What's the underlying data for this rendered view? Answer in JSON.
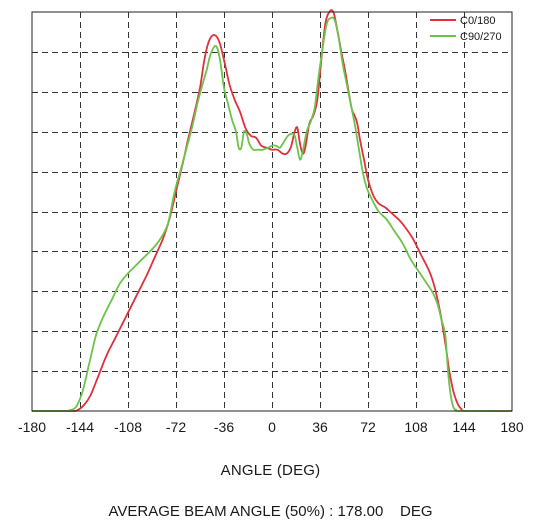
{
  "chart_data": {
    "type": "line",
    "xlabel": "ANGLE (DEG)",
    "ylabel": "",
    "xlim": [
      -180,
      180
    ],
    "ylim": [
      0,
      1
    ],
    "x_ticks": [
      -180,
      -144,
      -108,
      -72,
      -36,
      0,
      36,
      72,
      108,
      144,
      180
    ],
    "y_gridlines": 10,
    "grid": true,
    "legend": "top-right",
    "footer": "AVERAGE BEAM ANGLE (50%) : 178.00    DEG",
    "series": [
      {
        "name": "C0/180",
        "color": "#e0303c",
        "points": [
          [
            -180,
            0
          ],
          [
            -151,
            0
          ],
          [
            -146,
            0.002
          ],
          [
            -141,
            0.015
          ],
          [
            -136,
            0.04
          ],
          [
            -130,
            0.09
          ],
          [
            -124,
            0.14
          ],
          [
            -118,
            0.18
          ],
          [
            -112,
            0.22
          ],
          [
            -106,
            0.26
          ],
          [
            -100,
            0.3
          ],
          [
            -94,
            0.34
          ],
          [
            -88,
            0.385
          ],
          [
            -82,
            0.43
          ],
          [
            -77,
            0.48
          ],
          [
            -72,
            0.55
          ],
          [
            -67,
            0.62
          ],
          [
            -63,
            0.68
          ],
          [
            -58,
            0.75
          ],
          [
            -54,
            0.81
          ],
          [
            -51,
            0.875
          ],
          [
            -48,
            0.92
          ],
          [
            -45,
            0.94
          ],
          [
            -42,
            0.94
          ],
          [
            -39,
            0.92
          ],
          [
            -36,
            0.88
          ],
          [
            -32,
            0.82
          ],
          [
            -28,
            0.78
          ],
          [
            -24,
            0.75
          ],
          [
            -20,
            0.71
          ],
          [
            -16,
            0.69
          ],
          [
            -12,
            0.685
          ],
          [
            -8,
            0.665
          ],
          [
            -4,
            0.66
          ],
          [
            0,
            0.655
          ],
          [
            4,
            0.655
          ],
          [
            8,
            0.645
          ],
          [
            11,
            0.645
          ],
          [
            14,
            0.66
          ],
          [
            17,
            0.7
          ],
          [
            19,
            0.71
          ],
          [
            21,
            0.67
          ],
          [
            23,
            0.645
          ],
          [
            25,
            0.66
          ],
          [
            28,
            0.72
          ],
          [
            31,
            0.74
          ],
          [
            34,
            0.78
          ],
          [
            37,
            0.88
          ],
          [
            40,
            0.97
          ],
          [
            43,
            1.0
          ],
          [
            46,
            1.0
          ],
          [
            49,
            0.955
          ],
          [
            52,
            0.9
          ],
          [
            55,
            0.85
          ],
          [
            58,
            0.79
          ],
          [
            60,
            0.755
          ],
          [
            62,
            0.74
          ],
          [
            64,
            0.72
          ],
          [
            66,
            0.68
          ],
          [
            69,
            0.63
          ],
          [
            72,
            0.58
          ],
          [
            76,
            0.54
          ],
          [
            80,
            0.52
          ],
          [
            85,
            0.51
          ],
          [
            90,
            0.495
          ],
          [
            95,
            0.48
          ],
          [
            100,
            0.46
          ],
          [
            106,
            0.43
          ],
          [
            112,
            0.39
          ],
          [
            118,
            0.35
          ],
          [
            122,
            0.31
          ],
          [
            126,
            0.25
          ],
          [
            130,
            0.17
          ],
          [
            133,
            0.1
          ],
          [
            136,
            0.05
          ],
          [
            139,
            0.02
          ],
          [
            142,
            0.005
          ],
          [
            146,
            0
          ],
          [
            180,
            0
          ]
        ]
      },
      {
        "name": "C90/270",
        "color": "#6cc24a",
        "points": [
          [
            -180,
            0
          ],
          [
            -156,
            0
          ],
          [
            -152,
            0.002
          ],
          [
            -147,
            0.01
          ],
          [
            -142,
            0.05
          ],
          [
            -137,
            0.12
          ],
          [
            -132,
            0.19
          ],
          [
            -126,
            0.24
          ],
          [
            -120,
            0.28
          ],
          [
            -114,
            0.32
          ],
          [
            -108,
            0.345
          ],
          [
            -102,
            0.365
          ],
          [
            -96,
            0.385
          ],
          [
            -90,
            0.405
          ],
          [
            -84,
            0.43
          ],
          [
            -78,
            0.47
          ],
          [
            -73,
            0.55
          ],
          [
            -68,
            0.61
          ],
          [
            -64,
            0.66
          ],
          [
            -60,
            0.71
          ],
          [
            -56,
            0.77
          ],
          [
            -52,
            0.82
          ],
          [
            -49,
            0.855
          ],
          [
            -46,
            0.895
          ],
          [
            -42,
            0.915
          ],
          [
            -39,
            0.88
          ],
          [
            -36,
            0.81
          ],
          [
            -33,
            0.77
          ],
          [
            -30,
            0.73
          ],
          [
            -27,
            0.7
          ],
          [
            -25,
            0.66
          ],
          [
            -23,
            0.66
          ],
          [
            -21,
            0.7
          ],
          [
            -19,
            0.695
          ],
          [
            -17,
            0.67
          ],
          [
            -14,
            0.655
          ],
          [
            -11,
            0.655
          ],
          [
            -7,
            0.655
          ],
          [
            -3,
            0.66
          ],
          [
            0,
            0.665
          ],
          [
            3,
            0.665
          ],
          [
            6,
            0.66
          ],
          [
            9,
            0.675
          ],
          [
            12,
            0.69
          ],
          [
            15,
            0.695
          ],
          [
            17,
            0.69
          ],
          [
            19,
            0.66
          ],
          [
            21,
            0.63
          ],
          [
            23,
            0.65
          ],
          [
            26,
            0.7
          ],
          [
            29,
            0.725
          ],
          [
            32,
            0.76
          ],
          [
            35,
            0.84
          ],
          [
            38,
            0.91
          ],
          [
            41,
            0.97
          ],
          [
            44,
            0.985
          ],
          [
            47,
            0.98
          ],
          [
            50,
            0.935
          ],
          [
            53,
            0.87
          ],
          [
            56,
            0.82
          ],
          [
            59,
            0.77
          ],
          [
            62,
            0.72
          ],
          [
            65,
            0.66
          ],
          [
            68,
            0.6
          ],
          [
            71,
            0.56
          ],
          [
            75,
            0.53
          ],
          [
            80,
            0.5
          ],
          [
            86,
            0.48
          ],
          [
            92,
            0.45
          ],
          [
            98,
            0.42
          ],
          [
            104,
            0.38
          ],
          [
            110,
            0.35
          ],
          [
            116,
            0.32
          ],
          [
            120,
            0.3
          ],
          [
            124,
            0.27
          ],
          [
            127,
            0.23
          ],
          [
            130,
            0.19
          ],
          [
            132,
            0.1
          ],
          [
            134,
            0.04
          ],
          [
            136,
            0.01
          ],
          [
            138,
            0.003
          ],
          [
            141,
            0
          ],
          [
            180,
            0
          ]
        ]
      }
    ]
  }
}
